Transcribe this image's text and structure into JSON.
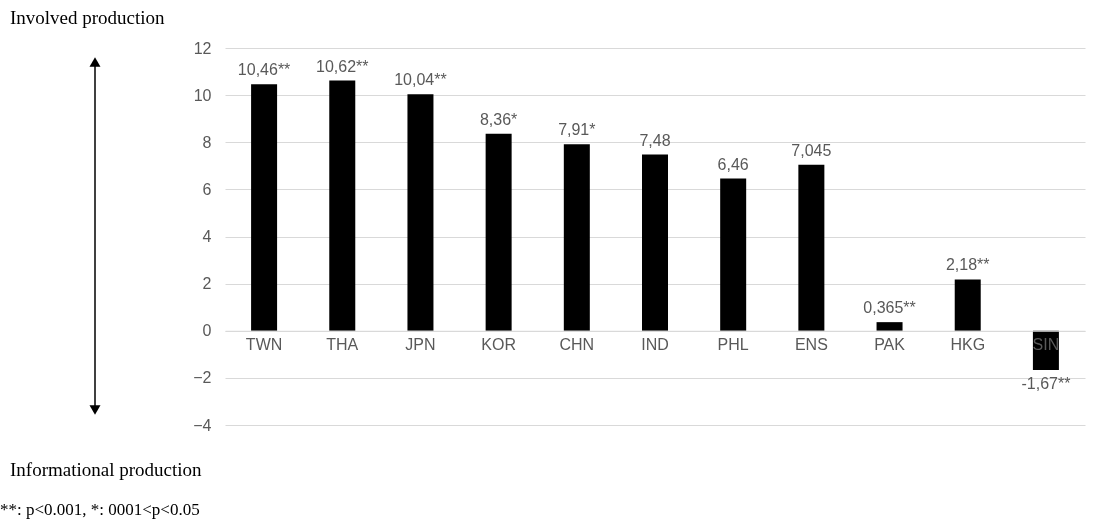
{
  "chart_data": {
    "type": "bar",
    "categories": [
      "TWN",
      "THA",
      "JPN",
      "KOR",
      "CHN",
      "IND",
      "PHL",
      "ENS",
      "PAK",
      "HKG",
      "SIN"
    ],
    "values": [
      10.46,
      10.62,
      10.04,
      8.36,
      7.91,
      7.48,
      6.46,
      7.045,
      0.365,
      2.18,
      -1.67
    ],
    "value_labels": [
      "10,46**",
      "10,62**",
      "10,04**",
      "8,36*",
      "7,91*",
      "7,48",
      "6,46",
      "7,045",
      "0,365**",
      "2,18**",
      "-1,67**"
    ],
    "color": "#000000",
    "ylim": [
      -4,
      12
    ],
    "yticks": [
      -4,
      -2,
      0,
      2,
      4,
      6,
      8,
      10,
      12
    ],
    "grid": "y",
    "annotations": [
      "Involved production",
      "Informational production",
      "**: p<0.001, *: 0001<p<0.05"
    ]
  }
}
